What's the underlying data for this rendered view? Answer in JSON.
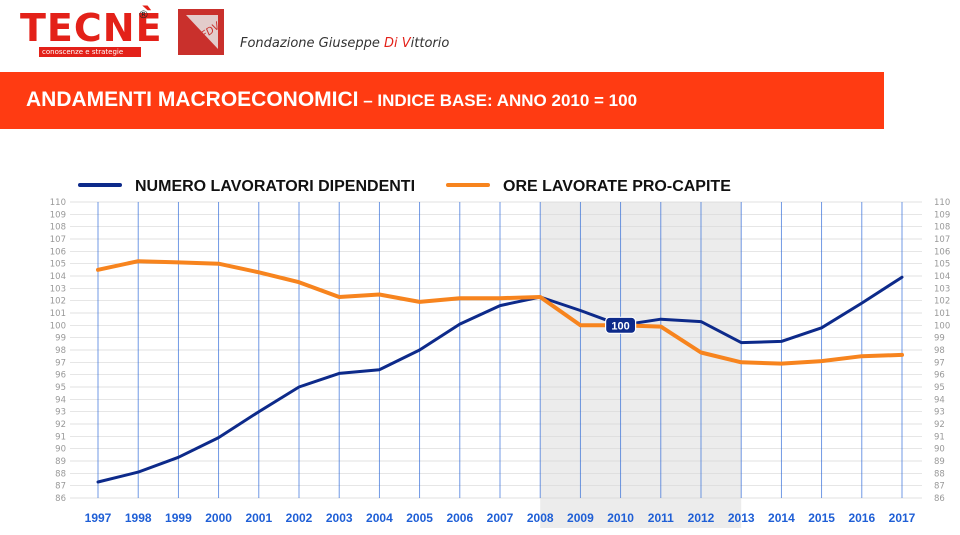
{
  "header": {
    "logo_tecne": "TECNÈ",
    "logo_tecne_reg": "®",
    "logo_tecne_tagline": "conoscenze e strategie",
    "logo_fdv_text": "FDV",
    "fondazione_name_a": "Fondazione Giuseppe ",
    "fondazione_name_b": "Di V",
    "fondazione_name_c": "ittorio"
  },
  "banner": {
    "title_main": "ANDAMENTI MACROECONOMICI",
    "title_sub": " – INDICE BASE: ANNO 2010 = 100"
  },
  "colors": {
    "brand_red": "#e32119",
    "banner": "#ff3b12",
    "series_workers": "#0d2a8a",
    "series_hours": "#f7841e",
    "x_axis_labels": "#1f5fd6",
    "highlight_band": "#ececec"
  },
  "chart_data": {
    "type": "line",
    "title": "",
    "xlabel": "",
    "ylabel": "",
    "x": [
      "1997",
      "1998",
      "1999",
      "2000",
      "2001",
      "2002",
      "2003",
      "2004",
      "2005",
      "2006",
      "2007",
      "2008",
      "2009",
      "2010",
      "2011",
      "2012",
      "2013",
      "2014",
      "2015",
      "2016",
      "2017"
    ],
    "ylim": [
      86,
      110
    ],
    "yticks": [
      86,
      87,
      88,
      89,
      90,
      91,
      92,
      93,
      94,
      95,
      96,
      97,
      98,
      99,
      100,
      101,
      102,
      103,
      104,
      105,
      106,
      107,
      108,
      109,
      110
    ],
    "grid": true,
    "legend_position": "top-left",
    "highlight_range": [
      "2008",
      "2013"
    ],
    "annotation": {
      "x": "2010",
      "y": 100,
      "label": "100"
    },
    "series": [
      {
        "name": "NUMERO LAVORATORI DIPENDENTI",
        "color": "#0d2a8a",
        "values": [
          87.3,
          88.1,
          89.3,
          90.9,
          93.0,
          95.0,
          96.1,
          96.4,
          98.0,
          100.1,
          101.6,
          102.3,
          101.2,
          100.0,
          100.5,
          100.3,
          98.6,
          98.7,
          99.8,
          101.8,
          103.9
        ]
      },
      {
        "name": "ORE LAVORATE PRO-CAPITE",
        "color": "#f7841e",
        "values": [
          104.5,
          105.2,
          105.1,
          105.0,
          104.3,
          103.5,
          102.3,
          102.5,
          101.9,
          102.2,
          102.2,
          102.3,
          100.0,
          100.0,
          99.9,
          97.8,
          97.0,
          96.9,
          97.1,
          97.5,
          97.6
        ]
      }
    ]
  }
}
